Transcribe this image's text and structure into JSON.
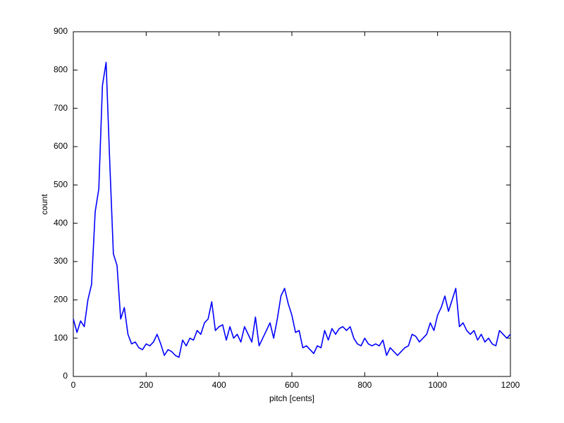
{
  "chart_data": {
    "type": "line",
    "xlabel": "pitch [cents]",
    "ylabel": "count",
    "xlim": [
      0,
      1200
    ],
    "ylim": [
      0,
      900
    ],
    "xticks": [
      0,
      200,
      400,
      600,
      800,
      1000,
      1200
    ],
    "yticks": [
      0,
      100,
      200,
      300,
      400,
      500,
      600,
      700,
      800,
      900
    ],
    "grid": false,
    "x": [
      0,
      10,
      20,
      30,
      40,
      50,
      60,
      70,
      80,
      90,
      100,
      110,
      120,
      130,
      140,
      150,
      160,
      170,
      180,
      190,
      200,
      210,
      220,
      230,
      240,
      250,
      260,
      270,
      280,
      290,
      300,
      310,
      320,
      330,
      340,
      350,
      360,
      370,
      380,
      390,
      400,
      410,
      420,
      430,
      440,
      450,
      460,
      470,
      480,
      490,
      500,
      510,
      520,
      530,
      540,
      550,
      560,
      570,
      580,
      590,
      600,
      610,
      620,
      630,
      640,
      650,
      660,
      670,
      680,
      690,
      700,
      710,
      720,
      730,
      740,
      750,
      760,
      770,
      780,
      790,
      800,
      810,
      820,
      830,
      840,
      850,
      860,
      870,
      880,
      890,
      900,
      910,
      920,
      930,
      940,
      950,
      960,
      970,
      980,
      990,
      1000,
      1010,
      1020,
      1030,
      1040,
      1050,
      1060,
      1070,
      1080,
      1090,
      1100,
      1110,
      1120,
      1130,
      1140,
      1150,
      1160,
      1170,
      1180,
      1190,
      1200
    ],
    "series": [
      {
        "color": "#0000ff",
        "values": [
          150,
          115,
          145,
          130,
          200,
          240,
          430,
          490,
          760,
          820,
          560,
          320,
          290,
          150,
          180,
          110,
          85,
          90,
          75,
          70,
          85,
          80,
          90,
          110,
          85,
          55,
          70,
          65,
          55,
          50,
          95,
          80,
          100,
          95,
          120,
          110,
          140,
          150,
          195,
          120,
          130,
          135,
          95,
          130,
          100,
          110,
          90,
          130,
          110,
          90,
          155,
          80,
          100,
          120,
          140,
          100,
          150,
          210,
          230,
          190,
          160,
          115,
          120,
          75,
          80,
          70,
          60,
          80,
          75,
          120,
          95,
          125,
          110,
          125,
          130,
          120,
          130,
          100,
          85,
          80,
          100,
          85,
          80,
          85,
          80,
          95,
          55,
          75,
          65,
          55,
          65,
          75,
          80,
          110,
          105,
          90,
          100,
          110,
          140,
          120,
          160,
          180,
          210,
          170,
          200,
          230,
          130,
          140,
          120,
          110,
          120,
          95,
          110,
          90,
          100,
          85,
          80,
          120,
          110,
          100,
          110
        ]
      }
    ]
  }
}
